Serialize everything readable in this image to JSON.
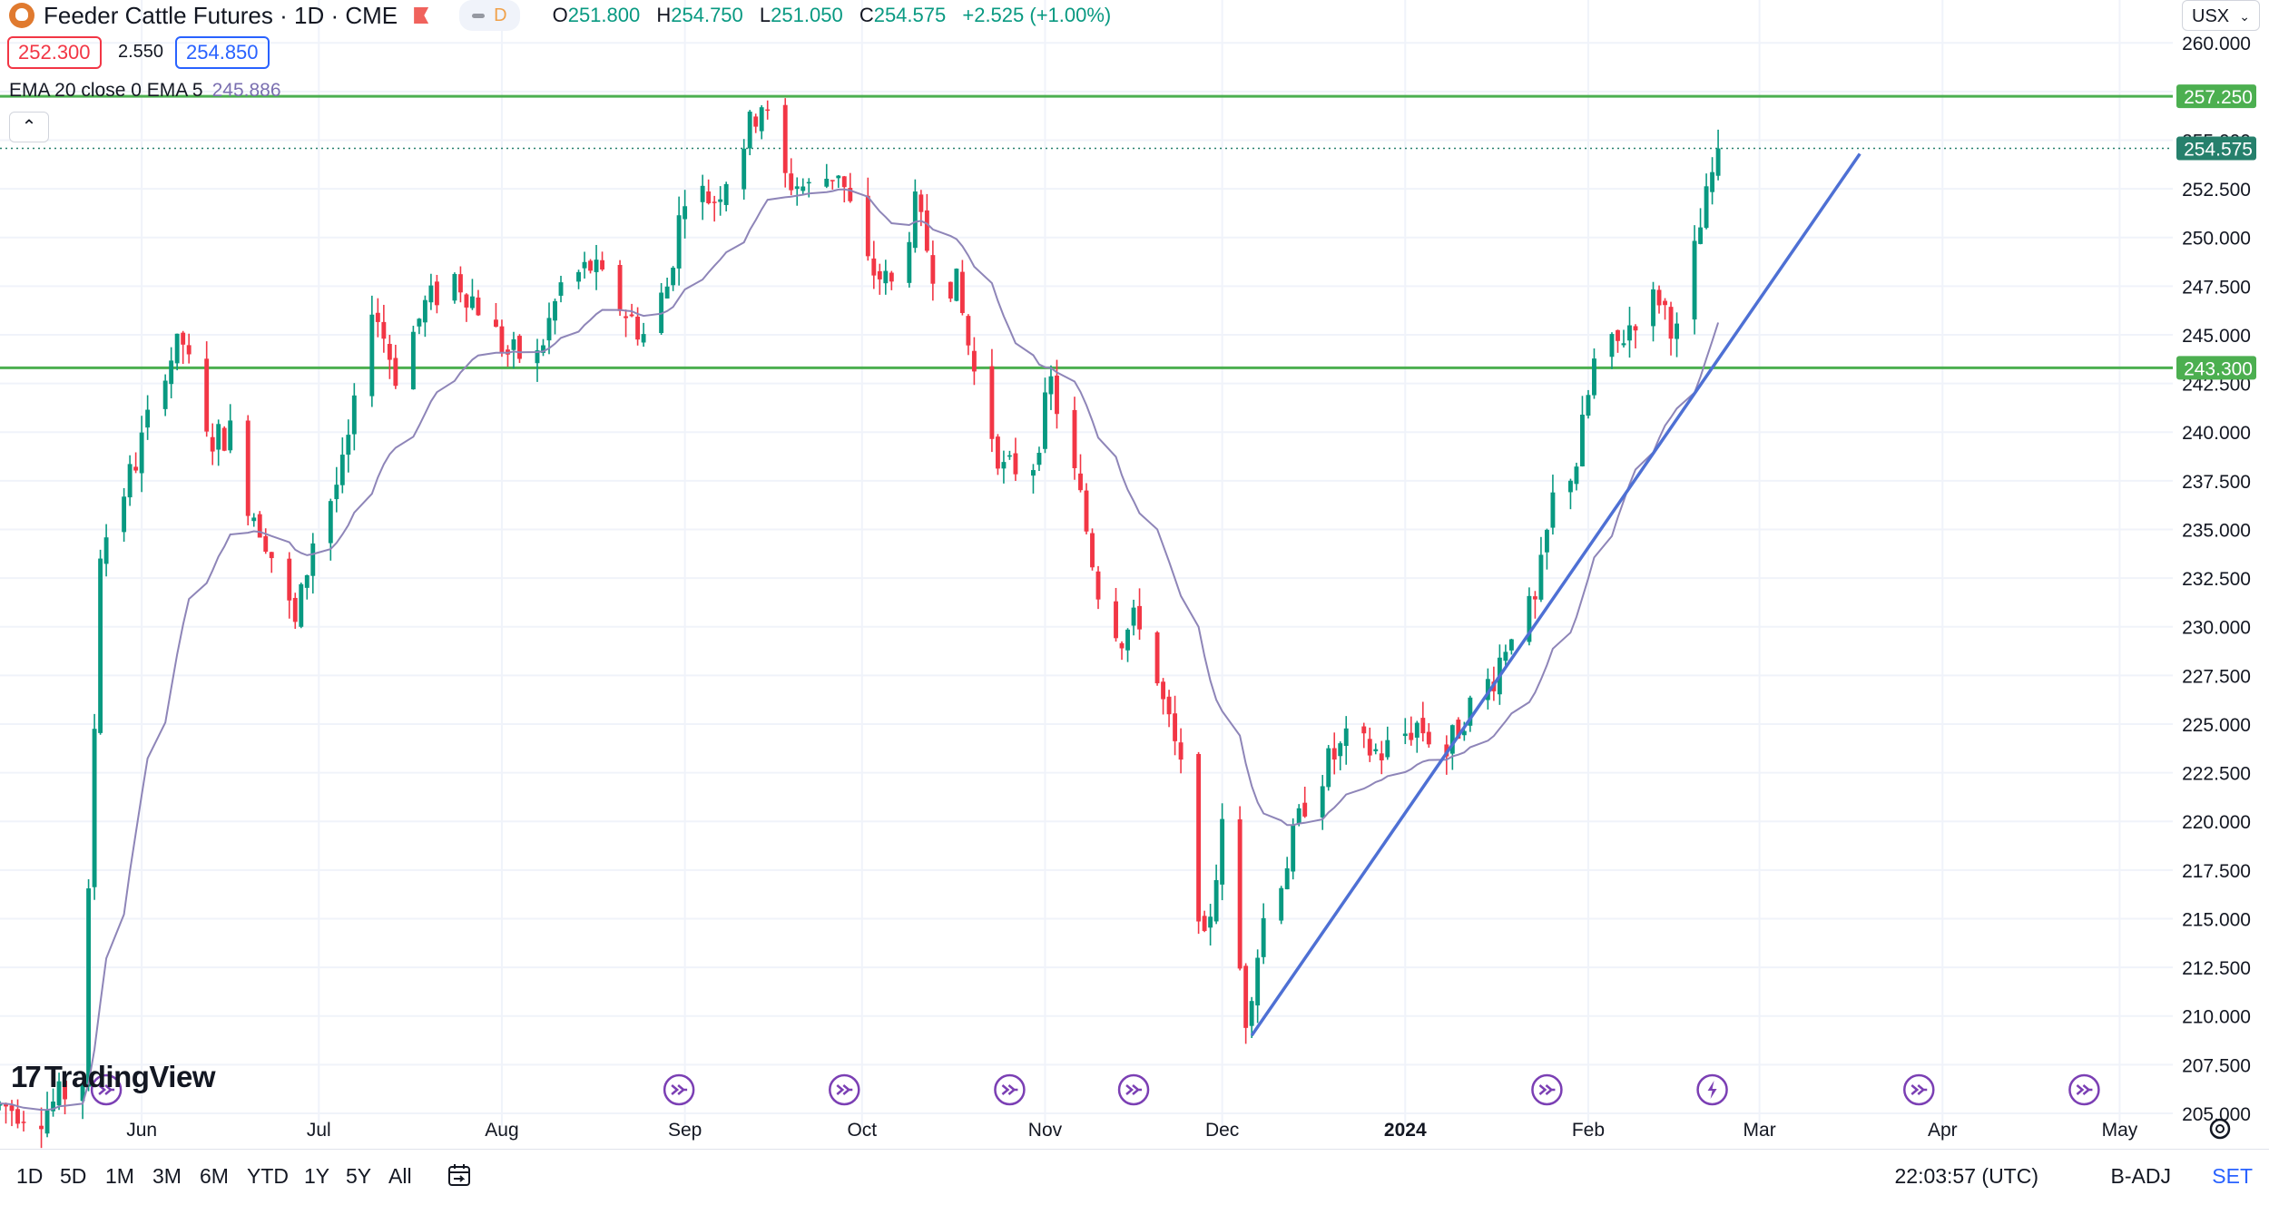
{
  "header": {
    "symbol": "Feeder Cattle Futures · 1D · CME",
    "mode_badge": "D",
    "open_label": "O",
    "open": "251.800",
    "high_label": "H",
    "high": "254.750",
    "low_label": "L",
    "low": "251.050",
    "close_label": "C",
    "close": "254.575",
    "change": "+2.525 (+1.00%)",
    "sell_price": "252.300",
    "spread": "2.550",
    "buy_price": "254.850"
  },
  "indicator": {
    "label": "EMA 20 close 0 EMA 5",
    "value": "245.886",
    "color": "#8e85b8"
  },
  "currency": "USX",
  "watermark": "TradingView",
  "timeframes": [
    "1D",
    "5D",
    "1M",
    "3M",
    "6M",
    "YTD",
    "1Y",
    "5Y",
    "All"
  ],
  "footer": {
    "clock": "22:03:57 (UTC)",
    "adjust": "B-ADJ",
    "settings": "SET"
  },
  "colors": {
    "up": "#089981",
    "down": "#f23645",
    "hline": "#4caf50",
    "trendline": "#4e70d4",
    "event": "#7b3fb4"
  },
  "chart_data": {
    "type": "candlestick",
    "y_ticks": [
      "205.000",
      "207.500",
      "210.000",
      "212.500",
      "215.000",
      "217.500",
      "220.000",
      "222.500",
      "225.000",
      "227.500",
      "230.000",
      "232.500",
      "235.000",
      "237.500",
      "240.000",
      "242.500",
      "245.000",
      "247.500",
      "250.000",
      "252.500",
      "255.000",
      "257.500",
      "260.000"
    ],
    "ylim": [
      204.3,
      262.2
    ],
    "x_ticks": [
      {
        "label": "Jun",
        "date": "2023-06-01"
      },
      {
        "label": "Jul",
        "date": "2023-07-01"
      },
      {
        "label": "Aug",
        "date": "2023-08-01"
      },
      {
        "label": "Sep",
        "date": "2023-09-01"
      },
      {
        "label": "Oct",
        "date": "2023-10-01"
      },
      {
        "label": "Nov",
        "date": "2023-11-01"
      },
      {
        "label": "Dec",
        "date": "2023-12-01"
      },
      {
        "label": "2024",
        "date": "2024-01-01",
        "bold": true
      },
      {
        "label": "Feb",
        "date": "2024-02-01"
      },
      {
        "label": "Mar",
        "date": "2024-03-01"
      },
      {
        "label": "Apr",
        "date": "2024-04-01"
      },
      {
        "label": "May",
        "date": "2024-05-01"
      }
    ],
    "xlim": [
      "2023-05-08",
      "2024-05-10"
    ],
    "horizontal_levels": [
      {
        "value": 257.25,
        "label": "257.250"
      },
      {
        "value": 243.3,
        "label": "243.300"
      }
    ],
    "last_price": {
      "value": 254.575,
      "label": "254.575"
    },
    "trendline": {
      "from": {
        "date": "2023-12-06",
        "price": 209.0
      },
      "to": {
        "date": "2024-03-18",
        "price": 254.3
      }
    },
    "event_markers": [
      {
        "date": "2023-05-26",
        "type": "rollover"
      },
      {
        "date": "2023-08-31",
        "type": "rollover"
      },
      {
        "date": "2023-09-28",
        "type": "rollover"
      },
      {
        "date": "2023-10-26",
        "type": "rollover"
      },
      {
        "date": "2023-11-16",
        "type": "rollover"
      },
      {
        "date": "2024-01-25",
        "type": "rollover"
      },
      {
        "date": "2024-02-22",
        "type": "dividend"
      },
      {
        "date": "2024-03-28",
        "type": "rollover"
      },
      {
        "date": "2024-04-25",
        "type": "rollover"
      }
    ],
    "anchors": [
      [
        "2023-05-08",
        205.4
      ],
      [
        "2023-05-15",
        205.0
      ],
      [
        "2023-05-22",
        206.8
      ],
      [
        "2023-05-25",
        234.0
      ],
      [
        "2023-05-31",
        238.5
      ],
      [
        "2023-06-05",
        243.5
      ],
      [
        "2023-06-08",
        244.6
      ],
      [
        "2023-06-12",
        239.5
      ],
      [
        "2023-06-16",
        240.0
      ],
      [
        "2023-06-19",
        236.5
      ],
      [
        "2023-06-22",
        234.6
      ],
      [
        "2023-06-27",
        230.0
      ],
      [
        "2023-06-30",
        234.5
      ],
      [
        "2023-07-05",
        238.0
      ],
      [
        "2023-07-07",
        241.0
      ],
      [
        "2023-07-10",
        246.8
      ],
      [
        "2023-07-14",
        243.0
      ],
      [
        "2023-07-19",
        246.5
      ],
      [
        "2023-07-24",
        248.0
      ],
      [
        "2023-07-28",
        246.5
      ],
      [
        "2023-08-02",
        244.0
      ],
      [
        "2023-08-07",
        243.8
      ],
      [
        "2023-08-11",
        247.5
      ],
      [
        "2023-08-16",
        248.5
      ],
      [
        "2023-08-21",
        246.5
      ],
      [
        "2023-08-25",
        245.0
      ],
      [
        "2023-08-29",
        247.5
      ],
      [
        "2023-09-01",
        252.5
      ],
      [
        "2023-09-06",
        252.0
      ],
      [
        "2023-09-11",
        255.0
      ],
      [
        "2023-09-14",
        257.0
      ],
      [
        "2023-09-18",
        253.0
      ],
      [
        "2023-09-22",
        252.5
      ],
      [
        "2023-09-27",
        253.5
      ],
      [
        "2023-10-02",
        248.5
      ],
      [
        "2023-10-06",
        247.5
      ],
      [
        "2023-10-10",
        251.5
      ],
      [
        "2023-10-13",
        248.5
      ],
      [
        "2023-10-17",
        247.5
      ],
      [
        "2023-10-20",
        243.0
      ],
      [
        "2023-10-25",
        238.0
      ],
      [
        "2023-10-30",
        238.5
      ],
      [
        "2023-11-02",
        242.5
      ],
      [
        "2023-11-07",
        236.5
      ],
      [
        "2023-11-10",
        232.0
      ],
      [
        "2023-11-14",
        229.5
      ],
      [
        "2023-11-17",
        230.5
      ],
      [
        "2023-11-21",
        226.0
      ],
      [
        "2023-11-24",
        222.5
      ],
      [
        "2023-11-28",
        213.5
      ],
      [
        "2023-12-01",
        219.5
      ],
      [
        "2023-12-05",
        210.0
      ],
      [
        "2023-12-08",
        215.0
      ],
      [
        "2023-12-12",
        218.0
      ],
      [
        "2023-12-15",
        221.0
      ],
      [
        "2023-12-19",
        223.0
      ],
      [
        "2023-12-22",
        224.0
      ],
      [
        "2023-12-28",
        223.5
      ],
      [
        "2024-01-03",
        225.0
      ],
      [
        "2024-01-08",
        223.5
      ],
      [
        "2024-01-11",
        225.5
      ],
      [
        "2024-01-16",
        227.5
      ],
      [
        "2024-01-19",
        230.0
      ],
      [
        "2024-01-23",
        231.0
      ],
      [
        "2024-01-26",
        236.5
      ],
      [
        "2024-01-30",
        238.5
      ],
      [
        "2024-02-02",
        243.5
      ],
      [
        "2024-02-06",
        244.5
      ],
      [
        "2024-02-09",
        246.0
      ],
      [
        "2024-02-13",
        247.0
      ],
      [
        "2024-02-16",
        245.0
      ],
      [
        "2024-02-20",
        250.5
      ],
      [
        "2024-02-23",
        254.575
      ]
    ]
  }
}
